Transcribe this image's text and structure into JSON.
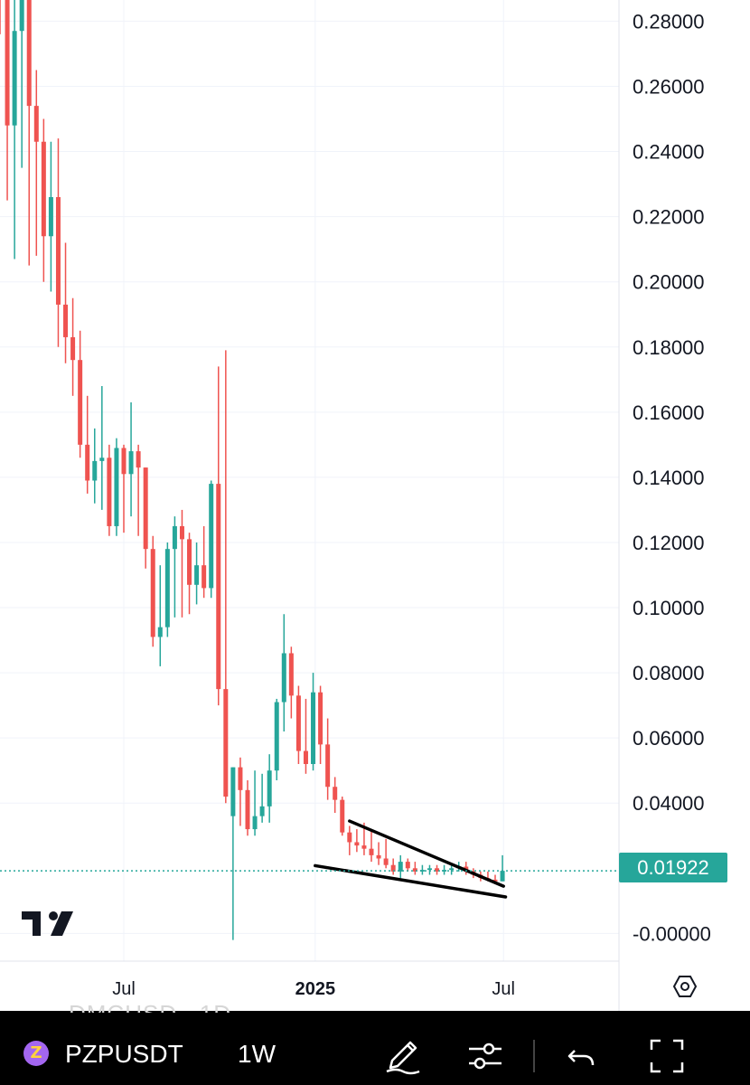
{
  "chart_data": {
    "type": "candlestick",
    "symbol": "PZPUSDT",
    "interval": "1W",
    "y_ticks": [
      "0.28000",
      "0.26000",
      "0.24000",
      "0.22000",
      "0.20000",
      "0.18000",
      "0.16000",
      "0.14000",
      "0.12000",
      "0.10000",
      "0.08000",
      "0.06000",
      "0.04000",
      "-0.00000"
    ],
    "y_tick_values": [
      0.28,
      0.26,
      0.24,
      0.22,
      0.2,
      0.18,
      0.16,
      0.14,
      0.12,
      0.1,
      0.08,
      0.06,
      0.04,
      0.0
    ],
    "ylim": [
      -0.0085,
      0.2865
    ],
    "x_ticks": [
      {
        "label": "Jul",
        "value": "2024-07-01",
        "bold": false
      },
      {
        "label": "2025",
        "value": "2025-01-01",
        "bold": true
      },
      {
        "label": "Jul",
        "value": "2025-07-01",
        "bold": false
      }
    ],
    "xlim": [
      "2024-03-04",
      "2025-10-20"
    ],
    "grid": true,
    "last_price": "0.01922",
    "last_price_value": 0.01922,
    "up_color": "#26a69a",
    "down_color": "#ef5350",
    "candles": [
      {
        "date": "2024-03-04",
        "o": 0.29,
        "h": 0.295,
        "l": 0.276,
        "c": 0.287
      },
      {
        "date": "2024-03-11",
        "o": 0.287,
        "h": 0.295,
        "l": 0.225,
        "c": 0.248
      },
      {
        "date": "2024-03-18",
        "o": 0.248,
        "h": 0.292,
        "l": 0.207,
        "c": 0.277
      },
      {
        "date": "2024-03-25",
        "o": 0.277,
        "h": 0.295,
        "l": 0.235,
        "c": 0.29
      },
      {
        "date": "2024-04-01",
        "o": 0.29,
        "h": 0.295,
        "l": 0.205,
        "c": 0.254
      },
      {
        "date": "2024-04-08",
        "o": 0.254,
        "h": 0.265,
        "l": 0.208,
        "c": 0.243
      },
      {
        "date": "2024-04-15",
        "o": 0.243,
        "h": 0.25,
        "l": 0.2,
        "c": 0.214
      },
      {
        "date": "2024-04-22",
        "o": 0.214,
        "h": 0.243,
        "l": 0.197,
        "c": 0.226
      },
      {
        "date": "2024-04-29",
        "o": 0.226,
        "h": 0.244,
        "l": 0.18,
        "c": 0.193
      },
      {
        "date": "2024-05-06",
        "o": 0.193,
        "h": 0.212,
        "l": 0.175,
        "c": 0.183
      },
      {
        "date": "2024-05-13",
        "o": 0.183,
        "h": 0.195,
        "l": 0.165,
        "c": 0.176
      },
      {
        "date": "2024-05-20",
        "o": 0.176,
        "h": 0.185,
        "l": 0.146,
        "c": 0.15
      },
      {
        "date": "2024-05-27",
        "o": 0.15,
        "h": 0.165,
        "l": 0.135,
        "c": 0.139
      },
      {
        "date": "2024-06-03",
        "o": 0.139,
        "h": 0.155,
        "l": 0.132,
        "c": 0.145
      },
      {
        "date": "2024-06-10",
        "o": 0.145,
        "h": 0.168,
        "l": 0.13,
        "c": 0.146
      },
      {
        "date": "2024-06-17",
        "o": 0.146,
        "h": 0.15,
        "l": 0.122,
        "c": 0.125
      },
      {
        "date": "2024-06-24",
        "o": 0.125,
        "h": 0.152,
        "l": 0.122,
        "c": 0.149
      },
      {
        "date": "2024-07-01",
        "o": 0.149,
        "h": 0.15,
        "l": 0.123,
        "c": 0.141
      },
      {
        "date": "2024-07-08",
        "o": 0.141,
        "h": 0.163,
        "l": 0.128,
        "c": 0.148
      },
      {
        "date": "2024-07-15",
        "o": 0.148,
        "h": 0.15,
        "l": 0.122,
        "c": 0.143
      },
      {
        "date": "2024-07-22",
        "o": 0.143,
        "h": 0.143,
        "l": 0.112,
        "c": 0.118
      },
      {
        "date": "2024-07-29",
        "o": 0.118,
        "h": 0.122,
        "l": 0.088,
        "c": 0.091
      },
      {
        "date": "2024-08-05",
        "o": 0.091,
        "h": 0.113,
        "l": 0.082,
        "c": 0.094
      },
      {
        "date": "2024-08-12",
        "o": 0.094,
        "h": 0.12,
        "l": 0.091,
        "c": 0.118
      },
      {
        "date": "2024-08-19",
        "o": 0.118,
        "h": 0.128,
        "l": 0.097,
        "c": 0.125
      },
      {
        "date": "2024-08-26",
        "o": 0.125,
        "h": 0.13,
        "l": 0.097,
        "c": 0.121
      },
      {
        "date": "2024-09-02",
        "o": 0.121,
        "h": 0.123,
        "l": 0.098,
        "c": 0.107
      },
      {
        "date": "2024-09-09",
        "o": 0.107,
        "h": 0.12,
        "l": 0.101,
        "c": 0.113
      },
      {
        "date": "2024-09-16",
        "o": 0.113,
        "h": 0.125,
        "l": 0.103,
        "c": 0.106
      },
      {
        "date": "2024-09-23",
        "o": 0.106,
        "h": 0.139,
        "l": 0.103,
        "c": 0.138
      },
      {
        "date": "2024-09-30",
        "o": 0.138,
        "h": 0.174,
        "l": 0.07,
        "c": 0.075
      },
      {
        "date": "2024-10-07",
        "o": 0.075,
        "h": 0.179,
        "l": 0.04,
        "c": 0.042
      },
      {
        "date": "2024-10-14",
        "o": 0.036,
        "h": 0.051,
        "l": -0.002,
        "c": 0.051
      },
      {
        "date": "2024-10-21",
        "o": 0.051,
        "h": 0.054,
        "l": 0.033,
        "c": 0.044
      },
      {
        "date": "2024-10-28",
        "o": 0.044,
        "h": 0.047,
        "l": 0.03,
        "c": 0.032
      },
      {
        "date": "2024-11-04",
        "o": 0.032,
        "h": 0.05,
        "l": 0.03,
        "c": 0.036
      },
      {
        "date": "2024-11-11",
        "o": 0.036,
        "h": 0.049,
        "l": 0.034,
        "c": 0.039
      },
      {
        "date": "2024-11-18",
        "o": 0.039,
        "h": 0.055,
        "l": 0.034,
        "c": 0.05
      },
      {
        "date": "2024-11-25",
        "o": 0.05,
        "h": 0.072,
        "l": 0.047,
        "c": 0.071
      },
      {
        "date": "2024-12-02",
        "o": 0.071,
        "h": 0.098,
        "l": 0.062,
        "c": 0.086
      },
      {
        "date": "2024-12-09",
        "o": 0.086,
        "h": 0.088,
        "l": 0.066,
        "c": 0.073
      },
      {
        "date": "2024-12-16",
        "o": 0.073,
        "h": 0.076,
        "l": 0.052,
        "c": 0.056
      },
      {
        "date": "2024-12-23",
        "o": 0.056,
        "h": 0.072,
        "l": 0.049,
        "c": 0.052
      },
      {
        "date": "2024-12-30",
        "o": 0.052,
        "h": 0.08,
        "l": 0.05,
        "c": 0.074
      },
      {
        "date": "2025-01-06",
        "o": 0.074,
        "h": 0.076,
        "l": 0.052,
        "c": 0.058
      },
      {
        "date": "2025-01-13",
        "o": 0.058,
        "h": 0.066,
        "l": 0.041,
        "c": 0.045
      },
      {
        "date": "2025-01-20",
        "o": 0.045,
        "h": 0.048,
        "l": 0.037,
        "c": 0.041
      },
      {
        "date": "2025-01-27",
        "o": 0.041,
        "h": 0.042,
        "l": 0.03,
        "c": 0.031
      },
      {
        "date": "2025-02-03",
        "o": 0.031,
        "h": 0.033,
        "l": 0.024,
        "c": 0.028
      },
      {
        "date": "2025-02-10",
        "o": 0.028,
        "h": 0.032,
        "l": 0.025,
        "c": 0.027
      },
      {
        "date": "2025-02-17",
        "o": 0.027,
        "h": 0.034,
        "l": 0.024,
        "c": 0.026
      },
      {
        "date": "2025-02-24",
        "o": 0.026,
        "h": 0.032,
        "l": 0.022,
        "c": 0.024
      },
      {
        "date": "2025-03-03",
        "o": 0.024,
        "h": 0.028,
        "l": 0.021,
        "c": 0.023
      },
      {
        "date": "2025-03-10",
        "o": 0.023,
        "h": 0.029,
        "l": 0.02,
        "c": 0.021
      },
      {
        "date": "2025-03-17",
        "o": 0.021,
        "h": 0.023,
        "l": 0.018,
        "c": 0.019
      },
      {
        "date": "2025-03-24",
        "o": 0.019,
        "h": 0.024,
        "l": 0.017,
        "c": 0.022
      },
      {
        "date": "2025-03-31",
        "o": 0.022,
        "h": 0.023,
        "l": 0.019,
        "c": 0.02
      },
      {
        "date": "2025-04-07",
        "o": 0.02,
        "h": 0.022,
        "l": 0.018,
        "c": 0.019
      },
      {
        "date": "2025-04-14",
        "o": 0.019,
        "h": 0.021,
        "l": 0.018,
        "c": 0.0195
      },
      {
        "date": "2025-04-21",
        "o": 0.0195,
        "h": 0.021,
        "l": 0.018,
        "c": 0.02
      },
      {
        "date": "2025-04-28",
        "o": 0.02,
        "h": 0.021,
        "l": 0.018,
        "c": 0.019
      },
      {
        "date": "2025-05-05",
        "o": 0.019,
        "h": 0.021,
        "l": 0.018,
        "c": 0.0195
      },
      {
        "date": "2025-05-12",
        "o": 0.0195,
        "h": 0.021,
        "l": 0.018,
        "c": 0.02
      },
      {
        "date": "2025-05-19",
        "o": 0.02,
        "h": 0.022,
        "l": 0.019,
        "c": 0.0205
      },
      {
        "date": "2025-05-26",
        "o": 0.0205,
        "h": 0.022,
        "l": 0.018,
        "c": 0.019
      },
      {
        "date": "2025-06-02",
        "o": 0.019,
        "h": 0.02,
        "l": 0.017,
        "c": 0.018
      },
      {
        "date": "2025-06-09",
        "o": 0.018,
        "h": 0.019,
        "l": 0.016,
        "c": 0.017
      },
      {
        "date": "2025-06-16",
        "o": 0.017,
        "h": 0.019,
        "l": 0.016,
        "c": 0.0165
      },
      {
        "date": "2025-06-23",
        "o": 0.0165,
        "h": 0.018,
        "l": 0.0155,
        "c": 0.016
      },
      {
        "date": "2025-06-30",
        "o": 0.016,
        "h": 0.024,
        "l": 0.016,
        "c": 0.01922
      }
    ],
    "trendlines": [
      {
        "x1": "2025-02-03",
        "y1": 0.0345,
        "x2": "2025-07-01",
        "y2": 0.0145
      },
      {
        "x1": "2025-01-01",
        "y1": 0.0208,
        "x2": "2025-07-03",
        "y2": 0.0112
      }
    ]
  },
  "toolbar": {
    "ghost_text": "DMCUSD",
    "ghost_text_2": "1D",
    "coin_glyph": "Z",
    "symbol": "PZPUSDT",
    "interval": "1W",
    "icons": [
      "pen-icon",
      "indicators-icon",
      "undo-icon",
      "fullscreen-icon"
    ]
  },
  "axis_settings_icon": "hexagon-settings-icon",
  "logo_icon": "tradingview-logo"
}
